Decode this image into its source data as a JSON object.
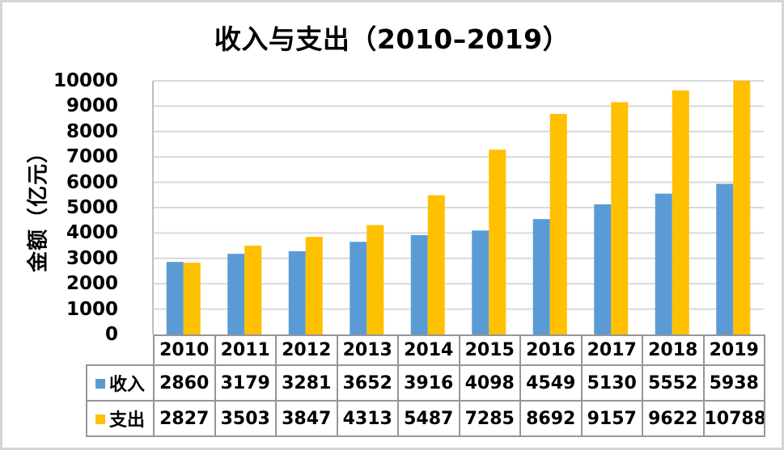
{
  "chart_data": {
    "type": "bar",
    "title": "收入与支出（2010–2019）",
    "xlabel": "",
    "ylabel": "金额（亿元）",
    "categories": [
      "2010",
      "2011",
      "2012",
      "2013",
      "2014",
      "2015",
      "2016",
      "2017",
      "2018",
      "2019"
    ],
    "series": [
      {
        "name": "收入",
        "color": "#5B9BD5",
        "values": [
          2860,
          3179,
          3281,
          3652,
          3916,
          4098,
          4549,
          5130,
          5552,
          5938
        ]
      },
      {
        "name": "支出",
        "color": "#FFC000",
        "values": [
          2827,
          3503,
          3847,
          4313,
          5487,
          7285,
          8692,
          9157,
          9622,
          10788
        ]
      }
    ],
    "ylim": [
      0,
      10000
    ],
    "ytick_step": 1000,
    "ytick_labels": [
      "0",
      "1000",
      "2000",
      "3000",
      "4000",
      "5000",
      "6000",
      "7000",
      "8000",
      "9000",
      "10000"
    ],
    "grid": true,
    "bars_clipped_at_ymax": true,
    "legend_position": "data-table-left",
    "gridline_color": "#D9D9D9",
    "axis_line_color": "#BFBFBF",
    "table_border_color": "#969696"
  }
}
